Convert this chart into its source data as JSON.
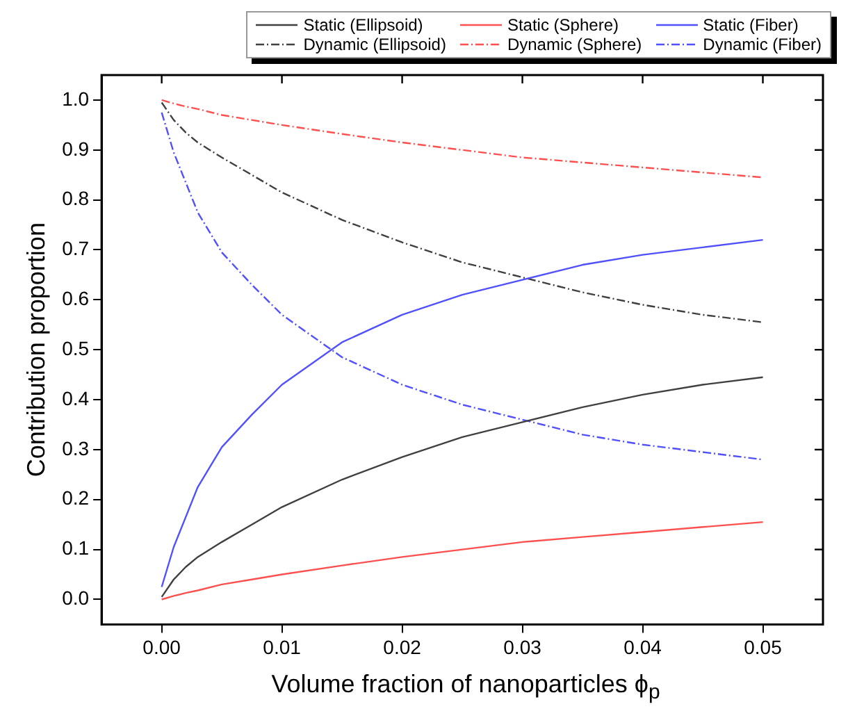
{
  "chart_data": {
    "type": "line",
    "xlabel": "Volume fraction of nanoparticles ϕ$_{p}$",
    "ylabel": "Contribution proportion",
    "x": [
      0,
      0.001,
      0.002,
      0.003,
      0.005,
      0.0075,
      0.01,
      0.015,
      0.02,
      0.025,
      0.03,
      0.035,
      0.04,
      0.045,
      0.05
    ],
    "series": [
      {
        "name": "Static (Ellipsoid)",
        "color": "#404040",
        "line_style": "solid",
        "values": [
          0.005,
          0.04,
          0.065,
          0.085,
          0.115,
          0.15,
          0.185,
          0.24,
          0.285,
          0.325,
          0.355,
          0.385,
          0.41,
          0.43,
          0.445
        ]
      },
      {
        "name": "Static (Sphere)",
        "color": "#ff5050",
        "line_style": "solid",
        "values": [
          0,
          0.007,
          0.013,
          0.018,
          0.03,
          0.04,
          0.05,
          0.068,
          0.085,
          0.1,
          0.115,
          0.125,
          0.135,
          0.145,
          0.155
        ]
      },
      {
        "name": "Static (Fiber)",
        "color": "#5050ff",
        "line_style": "solid",
        "values": [
          0.025,
          0.105,
          0.165,
          0.225,
          0.305,
          0.37,
          0.43,
          0.515,
          0.57,
          0.61,
          0.64,
          0.67,
          0.69,
          0.705,
          0.72
        ]
      },
      {
        "name": "Dynamic (Ellipsoid)",
        "color": "#404040",
        "line_style": "dashed",
        "values": [
          0.995,
          0.96,
          0.935,
          0.915,
          0.885,
          0.85,
          0.815,
          0.76,
          0.715,
          0.675,
          0.645,
          0.615,
          0.59,
          0.57,
          0.555
        ]
      },
      {
        "name": "Dynamic (Sphere)",
        "color": "#ff5050",
        "line_style": "dashed",
        "values": [
          1,
          0.993,
          0.987,
          0.982,
          0.97,
          0.96,
          0.95,
          0.932,
          0.915,
          0.9,
          0.885,
          0.875,
          0.865,
          0.855,
          0.845
        ]
      },
      {
        "name": "Dynamic (Fiber)",
        "color": "#5050ff",
        "line_style": "dashed",
        "values": [
          0.975,
          0.895,
          0.835,
          0.775,
          0.695,
          0.63,
          0.57,
          0.485,
          0.43,
          0.39,
          0.36,
          0.33,
          0.31,
          0.295,
          0.28
        ]
      }
    ],
    "xlim": [
      -0.005,
      0.055
    ],
    "xticks": [
      {
        "value": 0,
        "label": "0.00"
      },
      {
        "value": 0.01,
        "label": "0.01"
      },
      {
        "value": 0.02,
        "label": "0.02"
      },
      {
        "value": 0.03,
        "label": "0.03"
      },
      {
        "value": 0.04,
        "label": "0.04"
      },
      {
        "value": 0.05,
        "label": "0.05"
      }
    ],
    "ylim": [
      -0.05,
      1.05
    ],
    "yticks": [
      {
        "value": 0,
        "label": "0.0"
      },
      {
        "value": 0.1,
        "label": "0.1"
      },
      {
        "value": 0.2,
        "label": "0.2"
      },
      {
        "value": 0.3,
        "label": "0.3"
      },
      {
        "value": 0.4,
        "label": "0.4"
      },
      {
        "value": 0.5,
        "label": "0.5"
      },
      {
        "value": 0.6,
        "label": "0.6"
      },
      {
        "value": 0.7,
        "label": "0.7"
      },
      {
        "value": 0.8,
        "label": "0.8"
      },
      {
        "value": 0.9,
        "label": "0.9"
      },
      {
        "value": 1,
        "label": "1.0"
      }
    ],
    "grid": false,
    "legend": "top",
    "marker": "none"
  }
}
